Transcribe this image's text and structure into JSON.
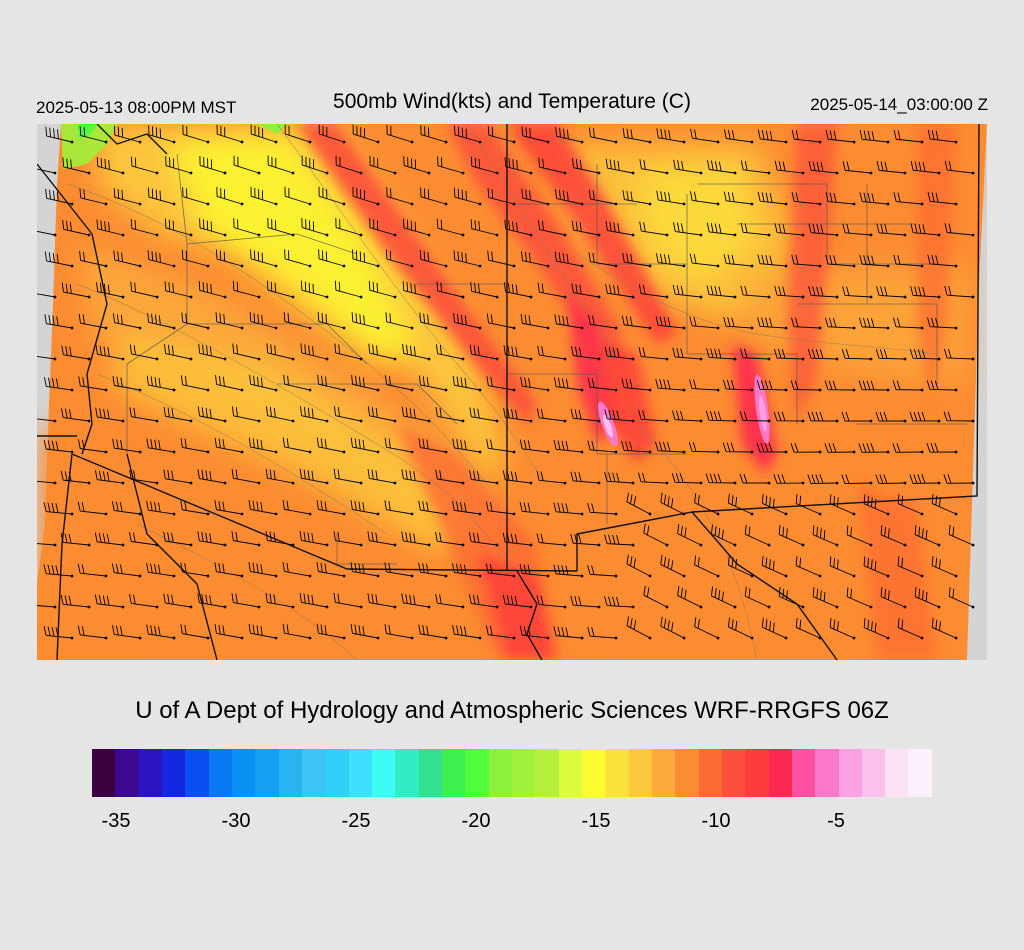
{
  "header": {
    "valid_local": "2025-05-13 08:00PM MST",
    "title": "500mb Wind(kts) and Temperature (C)",
    "valid_utc": "2025-05-14_03:00:00 Z"
  },
  "footer": {
    "credit": "U of A Dept of Hydrology and Atmospheric Sciences WRF-RRGFS 06Z"
  },
  "legend": {
    "colors": [
      "#3a0040",
      "#3c0a90",
      "#2a14c4",
      "#1428e0",
      "#0a50f0",
      "#0a78f0",
      "#0a90f0",
      "#14a0f0",
      "#28b4f0",
      "#3cc4f4",
      "#32d0f8",
      "#3ce0fc",
      "#3cfcf4",
      "#32ecc4",
      "#32e090",
      "#3cf050",
      "#50fc3c",
      "#8cf03c",
      "#a0f03c",
      "#b4f03c",
      "#dcfc3c",
      "#fcfc32",
      "#fce03c",
      "#fcc83c",
      "#fcac3c",
      "#fc8c32",
      "#fc6c32",
      "#fc503c",
      "#fc3c3c",
      "#fc2850",
      "#fc50a0",
      "#fc78c8",
      "#fca0e4",
      "#fcc0ec",
      "#fce0f4",
      "#fcf0fc"
    ],
    "tick_labels": [
      "-35",
      "-30",
      "-25",
      "-20",
      "-15",
      "-10",
      "-5"
    ],
    "tick_values": [
      -35,
      -30,
      -25,
      -20,
      -15,
      -10,
      -5
    ],
    "range": [
      -36,
      -1
    ]
  }
}
